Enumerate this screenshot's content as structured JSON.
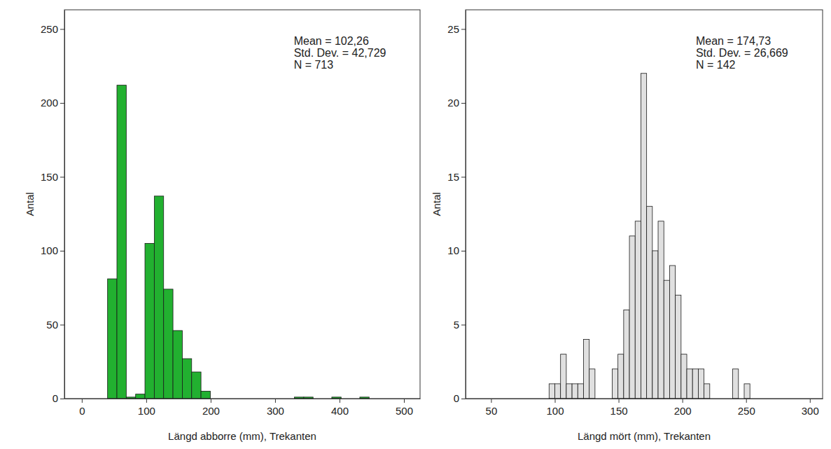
{
  "chart_data": [
    {
      "type": "histogram",
      "x_label": "Längd abborre (mm), Trekanten",
      "y_label": "Antal",
      "annotations": [
        "Mean = 102,26",
        "Std. Dev. = 42,729",
        "N = 713"
      ],
      "bins": [
        40,
        54.5,
        69,
        83.5,
        98,
        112.5,
        127,
        141.5,
        156,
        170.5,
        185,
        199.5,
        214,
        228.5,
        243,
        257.5,
        272,
        286.5,
        301,
        315.5,
        330,
        344.5,
        359,
        373.5,
        388,
        402.5,
        417,
        431.5,
        446
      ],
      "values": [
        81,
        212,
        1,
        3,
        105,
        137,
        74,
        46,
        27,
        18,
        5,
        0,
        0,
        0,
        0,
        0,
        0,
        0,
        0,
        0,
        1,
        1,
        0,
        0,
        1,
        0,
        0,
        1
      ],
      "color": "#22b030",
      "xlim": [
        -27,
        525
      ],
      "ylim": [
        0,
        263
      ],
      "xticks": [
        0,
        100,
        200,
        300,
        400,
        500
      ],
      "yticks": [
        0,
        50,
        100,
        150,
        200,
        250
      ],
      "grid": false
    },
    {
      "type": "histogram",
      "x_label": "Längd mört (mm), Trekanten",
      "y_label": "Antal",
      "annotations": [
        "Mean = 174,73",
        "Std. Dev. = 26,669",
        "N = 142"
      ],
      "bins": [
        95.5,
        100,
        104.5,
        109,
        113.5,
        118,
        122.5,
        127,
        131.5,
        136,
        140.5,
        145,
        149.5,
        154,
        158.5,
        163,
        167.5,
        172,
        176.5,
        181,
        185.5,
        190,
        194.5,
        199,
        203.5,
        208,
        212.5,
        217,
        221.5,
        226,
        230.5,
        235,
        239.5,
        244,
        248.5,
        253
      ],
      "values": [
        1,
        1,
        3,
        1,
        1,
        1,
        4,
        2,
        0,
        0,
        0,
        2,
        3,
        6,
        11,
        12,
        22,
        13,
        10,
        12,
        8,
        9,
        7,
        3,
        2,
        2,
        2,
        1,
        0,
        0,
        0,
        0,
        2,
        0,
        1
      ],
      "color": "#e0e0e0",
      "xlim": [
        30,
        310
      ],
      "ylim": [
        0,
        26.3
      ],
      "xticks": [
        50,
        100,
        150,
        200,
        250,
        300
      ],
      "yticks": [
        0,
        5,
        10,
        15,
        20,
        25
      ],
      "grid": false
    }
  ]
}
